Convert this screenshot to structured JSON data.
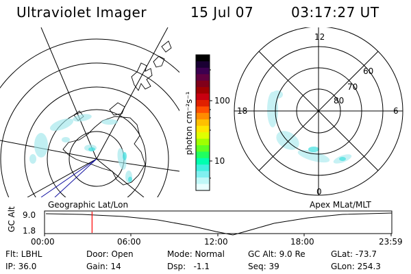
{
  "header": {
    "instrument": "Ultraviolet Imager",
    "date": "15 Jul 07",
    "time": "03:17:27 UT"
  },
  "panels": {
    "left_label": "Geographic Lat/Lon",
    "right_label": "Apex MLat/MLT"
  },
  "colorbar": {
    "unit_label": "photon cm⁻²s⁻¹",
    "ticks": [
      {
        "label": "100",
        "value": 100
      },
      {
        "label": "10",
        "value": 10
      }
    ],
    "colors": [
      "#000000",
      "#1a0033",
      "#3c0050",
      "#600040",
      "#80001a",
      "#a00000",
      "#c80010",
      "#e02000",
      "#ff5000",
      "#ff8c00",
      "#ffc000",
      "#ffe600",
      "#e0ff00",
      "#a0ff00",
      "#60ff20",
      "#20ff60",
      "#00ffb0",
      "#40f0e0",
      "#80f0f0",
      "#c0f8f8",
      "#e8ffff"
    ],
    "scale": "log"
  },
  "mlt_labels": {
    "top": "12",
    "left": "18",
    "right": "6",
    "bottom": "0"
  },
  "mlat_labels": [
    "60",
    "70",
    "80"
  ],
  "timeline": {
    "axis_label": "GC Alt",
    "ymax_label": "9.0",
    "ymin_label": "1.8",
    "ticks": [
      "00:00",
      "06:00",
      "12:00",
      "18:00",
      "23:59"
    ],
    "marker_time_hours": 3.29,
    "marker_color": "#ff0000"
  },
  "info": {
    "row1": {
      "filter": "Flt: LBHL",
      "door": "Door: Open",
      "mode": "Mode: Normal",
      "gc_alt": "GC Alt: 9.0 Re",
      "glat": "GLat: -73.7"
    },
    "row2": {
      "ip": "IP: 36.0",
      "gain": "Gain: 14",
      "dsp": "Dsp:   -1.1",
      "seq": "Seq: 39",
      "glon": "GLon: 254.3"
    }
  }
}
